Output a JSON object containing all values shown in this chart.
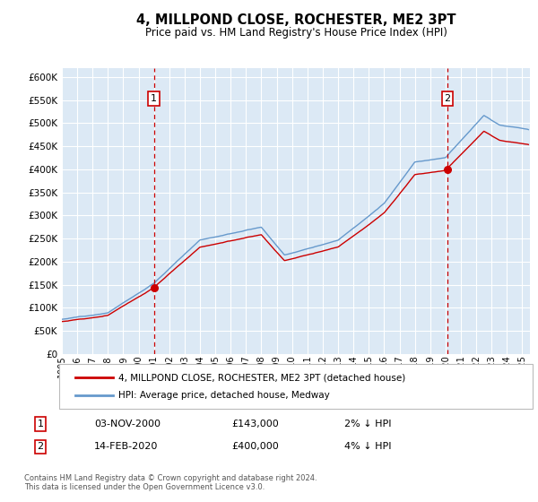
{
  "title": "4, MILLPOND CLOSE, ROCHESTER, ME2 3PT",
  "subtitle": "Price paid vs. HM Land Registry's House Price Index (HPI)",
  "legend_line1": "4, MILLPOND CLOSE, ROCHESTER, ME2 3PT (detached house)",
  "legend_line2": "HPI: Average price, detached house, Medway",
  "annotation1_label": "1",
  "annotation1_date": "03-NOV-2000",
  "annotation1_price": "£143,000",
  "annotation1_hpi": "2% ↓ HPI",
  "annotation1_year": 2001.0,
  "annotation2_label": "2",
  "annotation2_date": "14-FEB-2020",
  "annotation2_price": "£400,000",
  "annotation2_hpi": "4% ↓ HPI",
  "annotation2_year": 2020.12,
  "sale1_value": 143000,
  "sale2_value": 400000,
  "footer": "Contains HM Land Registry data © Crown copyright and database right 2024.\nThis data is licensed under the Open Government Licence v3.0.",
  "plot_bg_color": "#dce9f5",
  "grid_color": "#ffffff",
  "red_line_color": "#cc0000",
  "blue_line_color": "#6699cc",
  "vline_color": "#cc0000",
  "ylim": [
    0,
    620000
  ],
  "yticks": [
    0,
    50000,
    100000,
    150000,
    200000,
    250000,
    300000,
    350000,
    400000,
    450000,
    500000,
    550000,
    600000
  ],
  "xmin": 1995,
  "xmax": 2025.5
}
